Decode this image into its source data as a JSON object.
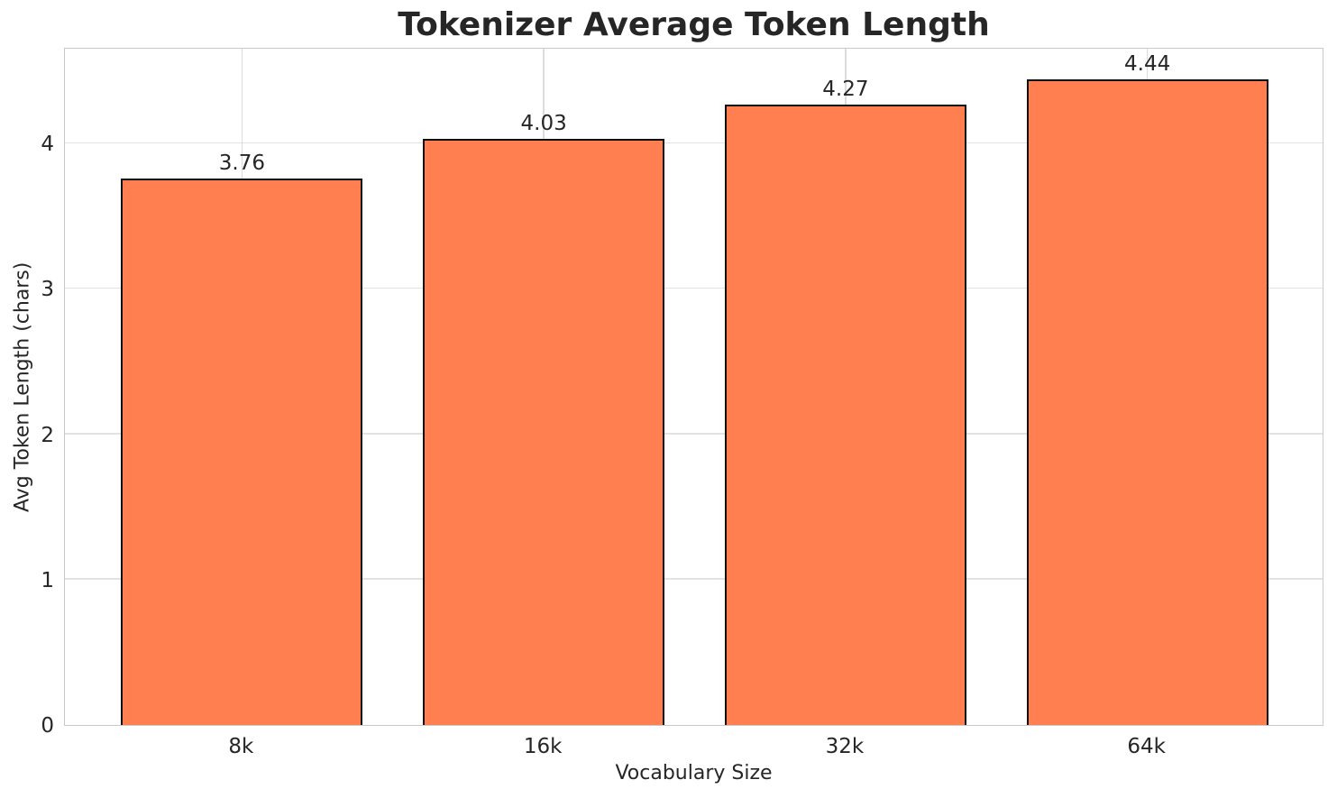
{
  "figure": {
    "background": "#ffffff"
  },
  "chart_data": {
    "type": "bar",
    "title": "Tokenizer Average Token Length",
    "xlabel": "Vocabulary Size",
    "ylabel": "Avg Token Length (chars)",
    "categories": [
      "8k",
      "16k",
      "32k",
      "64k"
    ],
    "values": [
      3.76,
      4.03,
      4.27,
      4.44
    ],
    "value_labels": [
      "3.76",
      "4.03",
      "4.27",
      "4.44"
    ],
    "yticks": [
      0,
      1,
      2,
      3,
      4
    ],
    "ylim": [
      0,
      4.66
    ],
    "grid": "on",
    "legend_position": "none",
    "bar_color": "#ff7f50",
    "bar_edge_color": "#0f0f0f",
    "grid_color": "#dcdcdc",
    "spine_color": "#c9c9c9",
    "text_color": "#262626"
  }
}
